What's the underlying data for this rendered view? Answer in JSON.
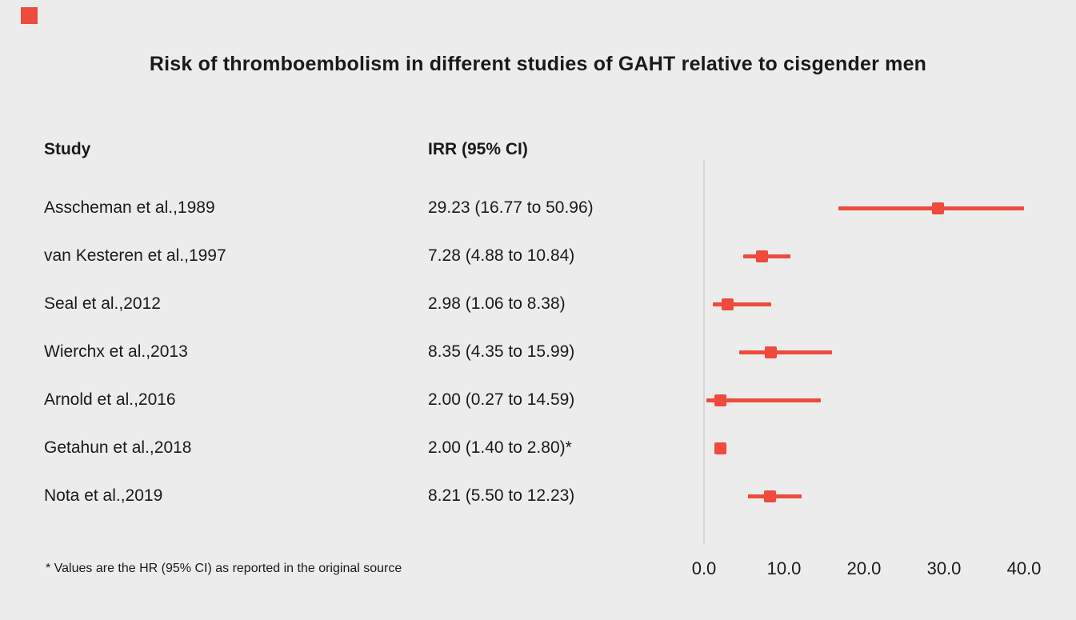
{
  "brand": {
    "logo": "red-square-logo"
  },
  "colors": {
    "background": "#ececec",
    "accent": "#ee4b3c",
    "axis": "#d6d6d6",
    "text": "#1a1a1a"
  },
  "chart_data": {
    "type": "scatter",
    "subtype": "forest-plot",
    "title": "Risk of thromboembolism in different studies of GAHT relative to cisgender men",
    "columns": [
      "Study",
      "IRR (95% CI)"
    ],
    "xlim": [
      0,
      40
    ],
    "xtick_labels": [
      "0.0",
      "10.0",
      "20.0",
      "30.0",
      "40.0"
    ],
    "xtick_values": [
      0,
      10,
      20,
      30,
      40
    ],
    "grid": "off",
    "legend": "none",
    "marker_color": "#ee4b3c",
    "studies": [
      {
        "label": "Asscheman et al.,1989",
        "irr_text": "29.23 (16.77 to 50.96)",
        "estimate": 29.23,
        "lower": 16.77,
        "upper": 50.96
      },
      {
        "label": "van Kesteren et al.,1997",
        "irr_text": "7.28 (4.88 to 10.84)",
        "estimate": 7.28,
        "lower": 4.88,
        "upper": 10.84
      },
      {
        "label": "Seal et al.,2012",
        "irr_text": "2.98 (1.06 to 8.38)",
        "estimate": 2.98,
        "lower": 1.06,
        "upper": 8.38
      },
      {
        "label": "Wierchx et al.,2013",
        "irr_text": "8.35 (4.35 to 15.99)",
        "estimate": 8.35,
        "lower": 4.35,
        "upper": 15.99
      },
      {
        "label": "Arnold et al.,2016",
        "irr_text": "2.00 (0.27 to 14.59)",
        "estimate": 2.0,
        "lower": 0.27,
        "upper": 14.59
      },
      {
        "label": "Getahun et al.,2018",
        "irr_text": "2.00 (1.40 to 2.80)*",
        "estimate": 2.0,
        "lower": 1.4,
        "upper": 2.8
      },
      {
        "label": "Nota et al.,2019",
        "irr_text": "8.21 (5.50 to 12.23)",
        "estimate": 8.21,
        "lower": 5.5,
        "upper": 12.23
      }
    ],
    "footnote": "* Values are the HR (95% CI) as reported in the original source"
  }
}
